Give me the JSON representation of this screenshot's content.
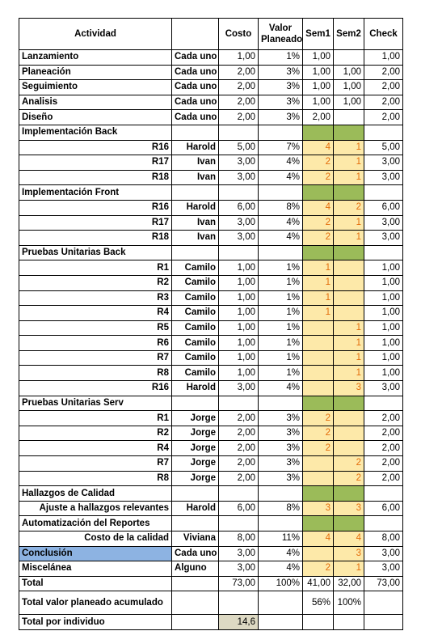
{
  "headers": {
    "actividad": "Actividad",
    "tipo": "",
    "costo": "Costo",
    "valor": "Valor Planeado",
    "sem1": "Sem1",
    "sem2": "Sem2",
    "check": "Check"
  },
  "rows": [
    {
      "kind": "main",
      "actividad": "Lanzamiento",
      "tipo": "Cada uno",
      "costo": "1,00",
      "valor": "1%",
      "sem1": "1,00",
      "sem2": "",
      "check": "1,00"
    },
    {
      "kind": "main",
      "actividad": "Planeación",
      "tipo": "Cada uno",
      "costo": "2,00",
      "valor": "3%",
      "sem1": "1,00",
      "sem2": "1,00",
      "check": "2,00"
    },
    {
      "kind": "main",
      "actividad": "Seguimiento",
      "tipo": "Cada uno",
      "costo": "2,00",
      "valor": "3%",
      "sem1": "1,00",
      "sem2": "1,00",
      "check": "2,00"
    },
    {
      "kind": "main",
      "actividad": "Analisis",
      "tipo": "Cada uno",
      "costo": "2,00",
      "valor": "3%",
      "sem1": "1,00",
      "sem2": "1,00",
      "check": "2,00"
    },
    {
      "kind": "main",
      "actividad": "Diseño",
      "tipo": "Cada uno",
      "costo": "2,00",
      "valor": "3%",
      "sem1": "2,00",
      "sem2": "",
      "check": "2,00"
    },
    {
      "kind": "section",
      "actividad": "Implementación Back"
    },
    {
      "kind": "sub",
      "actividad": "R16",
      "tipo": "Harold",
      "costo": "5,00",
      "valor": "7%",
      "sem1": "4",
      "sem2": "1",
      "check": "5,00"
    },
    {
      "kind": "sub",
      "actividad": "R17",
      "tipo": "Ivan",
      "costo": "3,00",
      "valor": "4%",
      "sem1": "2",
      "sem2": "1",
      "check": "3,00"
    },
    {
      "kind": "sub",
      "actividad": "R18",
      "tipo": "Ivan",
      "costo": "3,00",
      "valor": "4%",
      "sem1": "2",
      "sem2": "1",
      "check": "3,00"
    },
    {
      "kind": "section",
      "actividad": "Implementación Front"
    },
    {
      "kind": "sub",
      "actividad": "R16",
      "tipo": "Harold",
      "costo": "6,00",
      "valor": "8%",
      "sem1": "4",
      "sem2": "2",
      "check": "6,00"
    },
    {
      "kind": "sub",
      "actividad": "R17",
      "tipo": "Ivan",
      "costo": "3,00",
      "valor": "4%",
      "sem1": "2",
      "sem2": "1",
      "check": "3,00"
    },
    {
      "kind": "sub",
      "actividad": "R18",
      "tipo": "Ivan",
      "costo": "3,00",
      "valor": "4%",
      "sem1": "2",
      "sem2": "1",
      "check": "3,00"
    },
    {
      "kind": "section",
      "actividad": "Pruebas Unitarias Back"
    },
    {
      "kind": "sub",
      "actividad": "R1",
      "tipo": "Camilo",
      "costo": "1,00",
      "valor": "1%",
      "sem1": "1",
      "sem2": "",
      "check": "1,00"
    },
    {
      "kind": "sub",
      "actividad": "R2",
      "tipo": "Camilo",
      "costo": "1,00",
      "valor": "1%",
      "sem1": "1",
      "sem2": "",
      "check": "1,00"
    },
    {
      "kind": "sub",
      "actividad": "R3",
      "tipo": "Camilo",
      "costo": "1,00",
      "valor": "1%",
      "sem1": "1",
      "sem2": "",
      "check": "1,00"
    },
    {
      "kind": "sub",
      "actividad": "R4",
      "tipo": "Camilo",
      "costo": "1,00",
      "valor": "1%",
      "sem1": "1",
      "sem2": "",
      "check": "1,00"
    },
    {
      "kind": "sub",
      "actividad": "R5",
      "tipo": "Camilo",
      "costo": "1,00",
      "valor": "1%",
      "sem1": "",
      "sem2": "1",
      "check": "1,00"
    },
    {
      "kind": "sub",
      "actividad": "R6",
      "tipo": "Camilo",
      "costo": "1,00",
      "valor": "1%",
      "sem1": "",
      "sem2": "1",
      "check": "1,00"
    },
    {
      "kind": "sub",
      "actividad": "R7",
      "tipo": "Camilo",
      "costo": "1,00",
      "valor": "1%",
      "sem1": "",
      "sem2": "1",
      "check": "1,00"
    },
    {
      "kind": "sub",
      "actividad": "R8",
      "tipo": "Camilo",
      "costo": "1,00",
      "valor": "1%",
      "sem1": "",
      "sem2": "1",
      "check": "1,00"
    },
    {
      "kind": "sub",
      "actividad": "R16",
      "tipo": "Harold",
      "costo": "3,00",
      "valor": "4%",
      "sem1": "",
      "sem2": "3",
      "check": "3,00"
    },
    {
      "kind": "section",
      "actividad": "Pruebas Unitarias Serv"
    },
    {
      "kind": "sub",
      "actividad": "R1",
      "tipo": "Jorge",
      "costo": "2,00",
      "valor": "3%",
      "sem1": "2",
      "sem2": "",
      "check": "2,00"
    },
    {
      "kind": "sub",
      "actividad": "R2",
      "tipo": "Jorge",
      "costo": "2,00",
      "valor": "3%",
      "sem1": "2",
      "sem2": "",
      "check": "2,00"
    },
    {
      "kind": "sub",
      "actividad": "R4",
      "tipo": "Jorge",
      "costo": "2,00",
      "valor": "3%",
      "sem1": "2",
      "sem2": "",
      "check": "2,00"
    },
    {
      "kind": "sub",
      "actividad": "R7",
      "tipo": "Jorge",
      "costo": "2,00",
      "valor": "3%",
      "sem1": "",
      "sem2": "2",
      "check": "2,00"
    },
    {
      "kind": "sub",
      "actividad": "R8",
      "tipo": "Jorge",
      "costo": "2,00",
      "valor": "3%",
      "sem1": "",
      "sem2": "2",
      "check": "2,00"
    },
    {
      "kind": "section",
      "actividad": "Hallazgos de Calidad"
    },
    {
      "kind": "sub",
      "actividad": "Ajuste a hallazgos relevantes",
      "tipo": "Harold",
      "costo": "6,00",
      "valor": "8%",
      "sem1": "3",
      "sem2": "3",
      "check": "6,00"
    },
    {
      "kind": "section",
      "actividad": "Automatización del Reportes"
    },
    {
      "kind": "sub",
      "actividad": "Costo de la calidad",
      "tipo": "Viviana",
      "costo": "8,00",
      "valor": "11%",
      "sem1": "4",
      "sem2": "4",
      "check": "8,00"
    },
    {
      "kind": "blue",
      "actividad": "Conclusión",
      "tipo": "Cada uno",
      "costo": "3,00",
      "valor": "4%",
      "sem1": "",
      "sem2": "3",
      "check": "3,00"
    },
    {
      "kind": "misc",
      "actividad": "Misceláneа",
      "tipo": "Alguno",
      "costo": "3,00",
      "valor": "4%",
      "sem1": "2",
      "sem2": "1",
      "check": "3,00"
    }
  ],
  "total": {
    "label": "Total",
    "costo": "73,00",
    "valor": "100%",
    "sem1": "41,00",
    "sem2": "32,00",
    "check": "73,00"
  },
  "acumulado": {
    "label": "Total valor planeado acumulado",
    "sem1": "56%",
    "sem2": "100%"
  },
  "individuo": {
    "label": "Total por individuo",
    "costo": "14,6"
  }
}
